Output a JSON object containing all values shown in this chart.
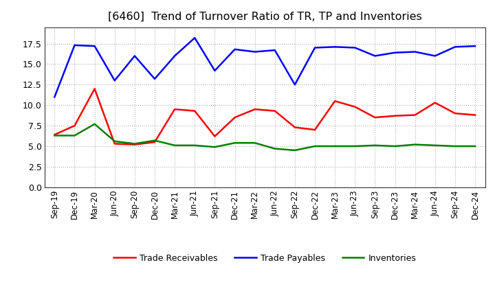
{
  "title": "[6460]  Trend of Turnover Ratio of TR, TP and Inventories",
  "x_labels": [
    "Sep-19",
    "Dec-19",
    "Mar-20",
    "Jun-20",
    "Sep-20",
    "Dec-20",
    "Mar-21",
    "Jun-21",
    "Sep-21",
    "Dec-21",
    "Mar-22",
    "Jun-22",
    "Sep-22",
    "Dec-22",
    "Mar-23",
    "Jun-23",
    "Sep-23",
    "Dec-23",
    "Mar-24",
    "Jun-24",
    "Sep-24",
    "Dec-24"
  ],
  "trade_receivables": [
    6.4,
    7.5,
    12.0,
    5.3,
    5.2,
    5.5,
    9.5,
    9.3,
    6.2,
    8.5,
    9.5,
    9.3,
    7.3,
    7.0,
    10.5,
    9.8,
    8.5,
    8.7,
    8.8,
    10.3,
    9.0,
    8.8
  ],
  "trade_payables": [
    11.0,
    17.3,
    17.2,
    13.0,
    16.0,
    13.2,
    16.0,
    18.2,
    14.2,
    16.8,
    16.5,
    16.7,
    12.5,
    17.0,
    17.1,
    17.0,
    16.0,
    16.4,
    16.5,
    16.0,
    17.1,
    17.2
  ],
  "inventories": [
    6.3,
    6.3,
    7.7,
    5.6,
    5.3,
    5.7,
    5.1,
    5.1,
    4.9,
    5.4,
    5.4,
    4.7,
    4.5,
    5.0,
    5.0,
    5.0,
    5.1,
    5.0,
    5.2,
    5.1,
    5.0,
    5.0
  ],
  "ylim": [
    0.0,
    19.5
  ],
  "yticks": [
    0.0,
    2.5,
    5.0,
    7.5,
    10.0,
    12.5,
    15.0,
    17.5
  ],
  "color_tr": "#ff0000",
  "color_tp": "#0000ff",
  "color_inv": "#008000",
  "legend_tr": "Trade Receivables",
  "legend_tp": "Trade Payables",
  "legend_inv": "Inventories",
  "background_color": "#ffffff",
  "grid_color": "#b0b0b0"
}
